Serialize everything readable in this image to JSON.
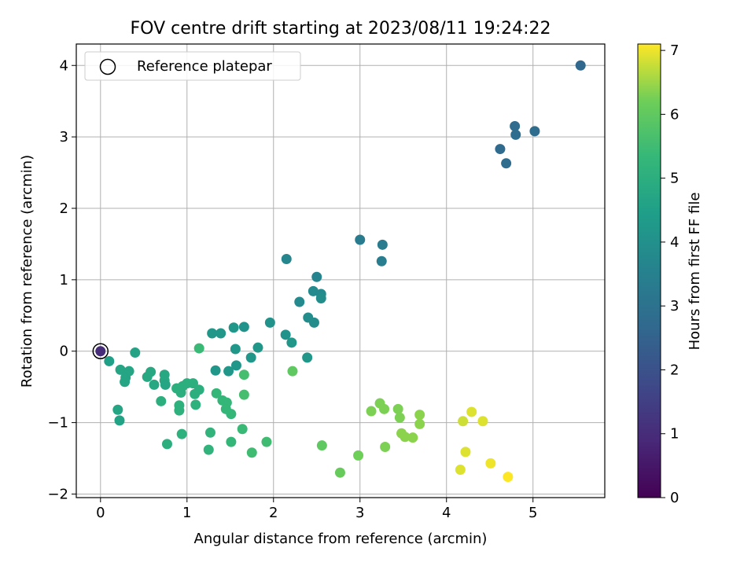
{
  "chart_data": {
    "type": "scatter",
    "title": "FOV centre drift starting at 2023/08/11 19:24:22",
    "xlabel": "Angular distance from reference (arcmin)",
    "ylabel": "Rotation from reference (arcmin)",
    "xlim": [
      -0.28,
      5.83
    ],
    "ylim": [
      -2.05,
      4.3
    ],
    "xticks": [
      0,
      1,
      2,
      3,
      4,
      5
    ],
    "yticks": [
      -2,
      -1,
      0,
      1,
      2,
      3,
      4
    ],
    "grid": true,
    "legend": {
      "placement": "top-left",
      "entries": [
        "Reference platepar"
      ]
    },
    "reference_point": {
      "x": 0,
      "y": 0
    },
    "colorbar": {
      "label": "Hours from first FF file",
      "colormap": "viridis",
      "range": [
        0,
        7.1
      ],
      "ticks": [
        0,
        1,
        2,
        3,
        4,
        5,
        6,
        7
      ]
    },
    "points": [
      {
        "x": 0.0,
        "y": 0.0,
        "c": 1.0
      },
      {
        "x": 5.55,
        "y": 4.0,
        "c": 2.7
      },
      {
        "x": 4.62,
        "y": 2.83,
        "c": 2.75
      },
      {
        "x": 4.69,
        "y": 2.63,
        "c": 2.8
      },
      {
        "x": 4.79,
        "y": 3.15,
        "c": 2.8
      },
      {
        "x": 4.8,
        "y": 3.03,
        "c": 2.85
      },
      {
        "x": 5.02,
        "y": 3.08,
        "c": 2.85
      },
      {
        "x": 3.0,
        "y": 1.56,
        "c": 3.3
      },
      {
        "x": 3.26,
        "y": 1.49,
        "c": 3.3
      },
      {
        "x": 3.25,
        "y": 1.26,
        "c": 3.4
      },
      {
        "x": 2.15,
        "y": 1.29,
        "c": 3.7
      },
      {
        "x": 2.5,
        "y": 1.04,
        "c": 3.6
      },
      {
        "x": 2.46,
        "y": 0.84,
        "c": 3.8
      },
      {
        "x": 2.55,
        "y": 0.8,
        "c": 3.8
      },
      {
        "x": 2.55,
        "y": 0.74,
        "c": 3.9
      },
      {
        "x": 2.3,
        "y": 0.69,
        "c": 3.8
      },
      {
        "x": 2.4,
        "y": 0.47,
        "c": 3.9
      },
      {
        "x": 2.47,
        "y": 0.4,
        "c": 3.9
      },
      {
        "x": 1.96,
        "y": 0.4,
        "c": 4.1
      },
      {
        "x": 2.14,
        "y": 0.23,
        "c": 4.1
      },
      {
        "x": 2.21,
        "y": 0.12,
        "c": 4.2
      },
      {
        "x": 2.39,
        "y": -0.09,
        "c": 4.2
      },
      {
        "x": 1.82,
        "y": 0.05,
        "c": 4.2
      },
      {
        "x": 1.74,
        "y": -0.09,
        "c": 4.2
      },
      {
        "x": 1.66,
        "y": 0.34,
        "c": 4.1
      },
      {
        "x": 1.54,
        "y": 0.33,
        "c": 4.2
      },
      {
        "x": 1.39,
        "y": 0.25,
        "c": 4.2
      },
      {
        "x": 1.29,
        "y": 0.25,
        "c": 4.2
      },
      {
        "x": 1.56,
        "y": 0.03,
        "c": 4.2
      },
      {
        "x": 1.57,
        "y": -0.2,
        "c": 4.2
      },
      {
        "x": 1.48,
        "y": -0.28,
        "c": 4.2
      },
      {
        "x": 1.33,
        "y": -0.27,
        "c": 4.2
      },
      {
        "x": 0.4,
        "y": -0.02,
        "c": 4.6
      },
      {
        "x": 0.1,
        "y": -0.14,
        "c": 4.5
      },
      {
        "x": 0.23,
        "y": -0.26,
        "c": 4.7
      },
      {
        "x": 0.33,
        "y": -0.28,
        "c": 4.7
      },
      {
        "x": 0.29,
        "y": -0.37,
        "c": 4.7
      },
      {
        "x": 0.28,
        "y": -0.43,
        "c": 4.7
      },
      {
        "x": 0.2,
        "y": -0.82,
        "c": 4.7
      },
      {
        "x": 0.22,
        "y": -0.97,
        "c": 4.6
      },
      {
        "x": 0.54,
        "y": -0.36,
        "c": 4.8
      },
      {
        "x": 0.58,
        "y": -0.29,
        "c": 4.8
      },
      {
        "x": 0.62,
        "y": -0.47,
        "c": 4.8
      },
      {
        "x": 0.74,
        "y": -0.33,
        "c": 4.8
      },
      {
        "x": 0.74,
        "y": -0.41,
        "c": 4.8
      },
      {
        "x": 0.75,
        "y": -0.47,
        "c": 4.7
      },
      {
        "x": 0.88,
        "y": -0.52,
        "c": 5.0
      },
      {
        "x": 0.95,
        "y": -0.49,
        "c": 5.0
      },
      {
        "x": 1.0,
        "y": -0.45,
        "c": 5.0
      },
      {
        "x": 1.07,
        "y": -0.45,
        "c": 5.0
      },
      {
        "x": 1.09,
        "y": -0.6,
        "c": 5.0
      },
      {
        "x": 1.14,
        "y": -0.54,
        "c": 5.0
      },
      {
        "x": 0.93,
        "y": -0.58,
        "c": 5.0
      },
      {
        "x": 0.7,
        "y": -0.7,
        "c": 5.0
      },
      {
        "x": 0.91,
        "y": -0.76,
        "c": 5.1
      },
      {
        "x": 0.91,
        "y": -0.83,
        "c": 5.1
      },
      {
        "x": 1.1,
        "y": -0.75,
        "c": 5.1
      },
      {
        "x": 1.14,
        "y": 0.04,
        "c": 5.4
      },
      {
        "x": 1.34,
        "y": -0.59,
        "c": 5.3
      },
      {
        "x": 1.41,
        "y": -0.69,
        "c": 5.3
      },
      {
        "x": 1.46,
        "y": -0.72,
        "c": 5.3
      },
      {
        "x": 1.45,
        "y": -0.81,
        "c": 5.3
      },
      {
        "x": 1.51,
        "y": -0.88,
        "c": 5.3
      },
      {
        "x": 1.66,
        "y": -0.33,
        "c": 5.6
      },
      {
        "x": 1.66,
        "y": -0.61,
        "c": 5.6
      },
      {
        "x": 2.22,
        "y": -0.28,
        "c": 6.0
      },
      {
        "x": 0.77,
        "y": -1.3,
        "c": 5.0
      },
      {
        "x": 0.94,
        "y": -1.16,
        "c": 5.1
      },
      {
        "x": 1.27,
        "y": -1.14,
        "c": 5.2
      },
      {
        "x": 1.25,
        "y": -1.38,
        "c": 5.2
      },
      {
        "x": 1.51,
        "y": -1.27,
        "c": 5.3
      },
      {
        "x": 1.64,
        "y": -1.09,
        "c": 5.4
      },
      {
        "x": 1.75,
        "y": -1.42,
        "c": 5.5
      },
      {
        "x": 1.92,
        "y": -1.27,
        "c": 5.5
      },
      {
        "x": 2.56,
        "y": -1.32,
        "c": 6.0
      },
      {
        "x": 2.77,
        "y": -1.7,
        "c": 6.1
      },
      {
        "x": 2.98,
        "y": -1.46,
        "c": 6.2
      },
      {
        "x": 3.13,
        "y": -0.84,
        "c": 6.3
      },
      {
        "x": 3.23,
        "y": -0.73,
        "c": 6.3
      },
      {
        "x": 3.28,
        "y": -0.81,
        "c": 6.3
      },
      {
        "x": 3.44,
        "y": -0.81,
        "c": 6.3
      },
      {
        "x": 3.46,
        "y": -0.93,
        "c": 6.3
      },
      {
        "x": 3.29,
        "y": -1.34,
        "c": 6.3
      },
      {
        "x": 3.48,
        "y": -1.15,
        "c": 6.4
      },
      {
        "x": 3.52,
        "y": -1.2,
        "c": 6.4
      },
      {
        "x": 3.61,
        "y": -1.21,
        "c": 6.4
      },
      {
        "x": 3.69,
        "y": -0.89,
        "c": 6.4
      },
      {
        "x": 3.69,
        "y": -1.02,
        "c": 6.4
      },
      {
        "x": 4.19,
        "y": -0.98,
        "c": 6.8
      },
      {
        "x": 4.29,
        "y": -0.85,
        "c": 6.9
      },
      {
        "x": 4.42,
        "y": -0.98,
        "c": 6.9
      },
      {
        "x": 4.22,
        "y": -1.41,
        "c": 6.9
      },
      {
        "x": 4.16,
        "y": -1.66,
        "c": 6.9
      },
      {
        "x": 4.51,
        "y": -1.57,
        "c": 7.0
      },
      {
        "x": 4.71,
        "y": -1.76,
        "c": 7.1
      }
    ]
  }
}
